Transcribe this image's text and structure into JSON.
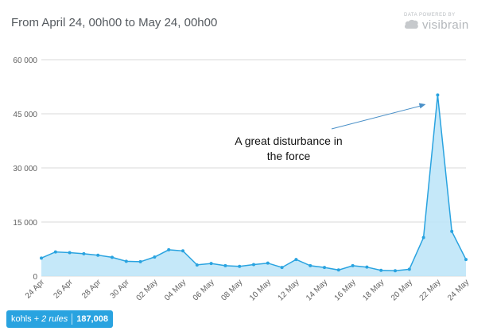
{
  "header": {
    "title": "From April 24, 00h00 to May 24, 00h00",
    "brand_small": "DATA POWERED BY",
    "brand_name": "visibrain"
  },
  "badge": {
    "query": "kohls +",
    "rules": "2 rules",
    "count": "187,008"
  },
  "colors": {
    "line": "#29a3e0",
    "fill": "#bfe6f8",
    "grid": "#d8d8d8",
    "badge": "#29a3e0"
  },
  "chart_data": {
    "type": "area",
    "title": "",
    "xlabel": "",
    "ylabel": "",
    "ylim": [
      0,
      60000
    ],
    "y_ticks": [
      0,
      15000,
      30000,
      45000,
      60000
    ],
    "y_tick_labels": [
      "0",
      "15 000",
      "30 000",
      "45 000",
      "60 000"
    ],
    "x_tick_labels": [
      "24 Apr",
      "26 Apr",
      "28 Apr",
      "30 Apr",
      "02 May",
      "04 May",
      "06 May",
      "08 May",
      "10 May",
      "12 May",
      "14 May",
      "16 May",
      "18 May",
      "20 May",
      "22 May",
      "24 May"
    ],
    "x_start": "2016-04-24",
    "x_step_days": 1,
    "values": [
      5000,
      6700,
      6500,
      6200,
      5800,
      5200,
      4100,
      4000,
      5300,
      7300,
      7000,
      3100,
      3500,
      2900,
      2700,
      3200,
      3600,
      2400,
      4600,
      2900,
      2400,
      1700,
      2900,
      2500,
      1600,
      1500,
      1900,
      10700,
      50200,
      12400,
      4600
    ],
    "annotation": {
      "text_lines": [
        "A great disturbance in",
        "the force"
      ],
      "target_day_index": 28
    },
    "grid": true
  }
}
